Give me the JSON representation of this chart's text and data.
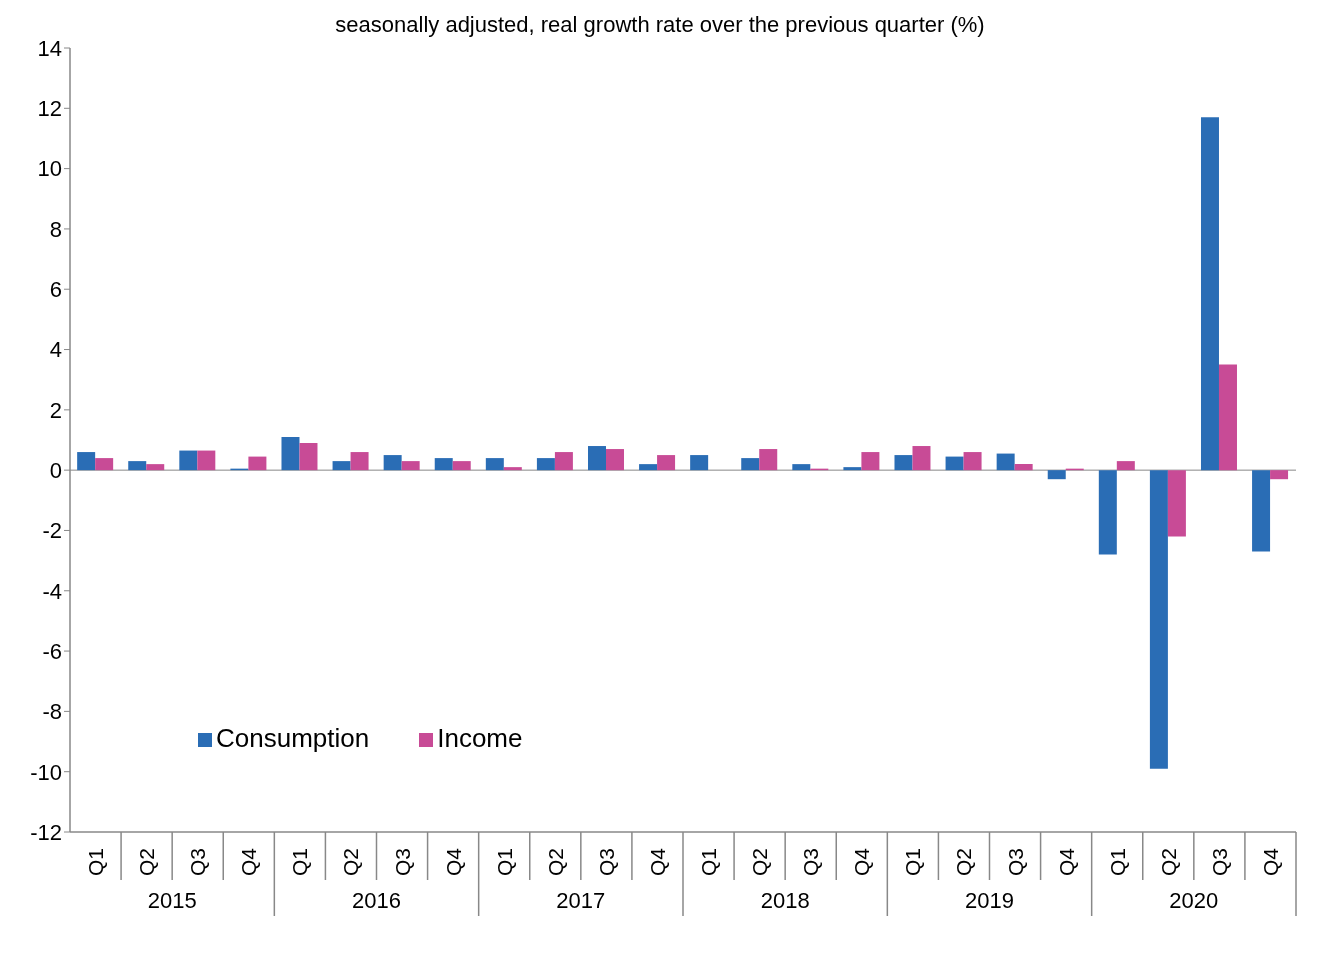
{
  "chart_data": {
    "type": "bar",
    "title": "seasonally adjusted, real growth rate over the previous quarter (%)",
    "categories": [
      "Q1",
      "Q2",
      "Q3",
      "Q4",
      "Q1",
      "Q2",
      "Q3",
      "Q4",
      "Q1",
      "Q2",
      "Q3",
      "Q4",
      "Q1",
      "Q2",
      "Q3",
      "Q4",
      "Q1",
      "Q2",
      "Q3",
      "Q4",
      "Q1",
      "Q2",
      "Q3",
      "Q4"
    ],
    "annotations": [
      "2015",
      "2016",
      "2017",
      "2018",
      "2019",
      "2020"
    ],
    "series": [
      {
        "name": "Consumption",
        "color": "#2a6db5",
        "values": [
          0.6,
          0.3,
          0.65,
          0.05,
          1.1,
          0.3,
          0.5,
          0.4,
          0.4,
          0.4,
          0.8,
          0.2,
          0.5,
          0.4,
          0.2,
          0.1,
          0.5,
          0.45,
          0.55,
          -0.3,
          -2.8,
          -9.9,
          11.7,
          -2.7
        ]
      },
      {
        "name": "Income",
        "color": "#c84b96",
        "values": [
          0.4,
          0.2,
          0.65,
          0.45,
          0.9,
          0.6,
          0.3,
          0.3,
          0.1,
          0.6,
          0.7,
          0.5,
          0,
          0.7,
          0.05,
          0.6,
          0.8,
          0.6,
          0.2,
          0.05,
          0.3,
          -2.2,
          3.5,
          -0.3
        ]
      }
    ],
    "ylim": [
      -12,
      14
    ],
    "yticks": [
      -12,
      -10,
      -8,
      -6,
      -4,
      -2,
      0,
      2,
      4,
      6,
      8,
      10,
      12,
      14
    ],
    "ref_lines": [
      {
        "axis": "y",
        "value": 0,
        "color": "#888888"
      }
    ],
    "legend": "bottom left"
  }
}
